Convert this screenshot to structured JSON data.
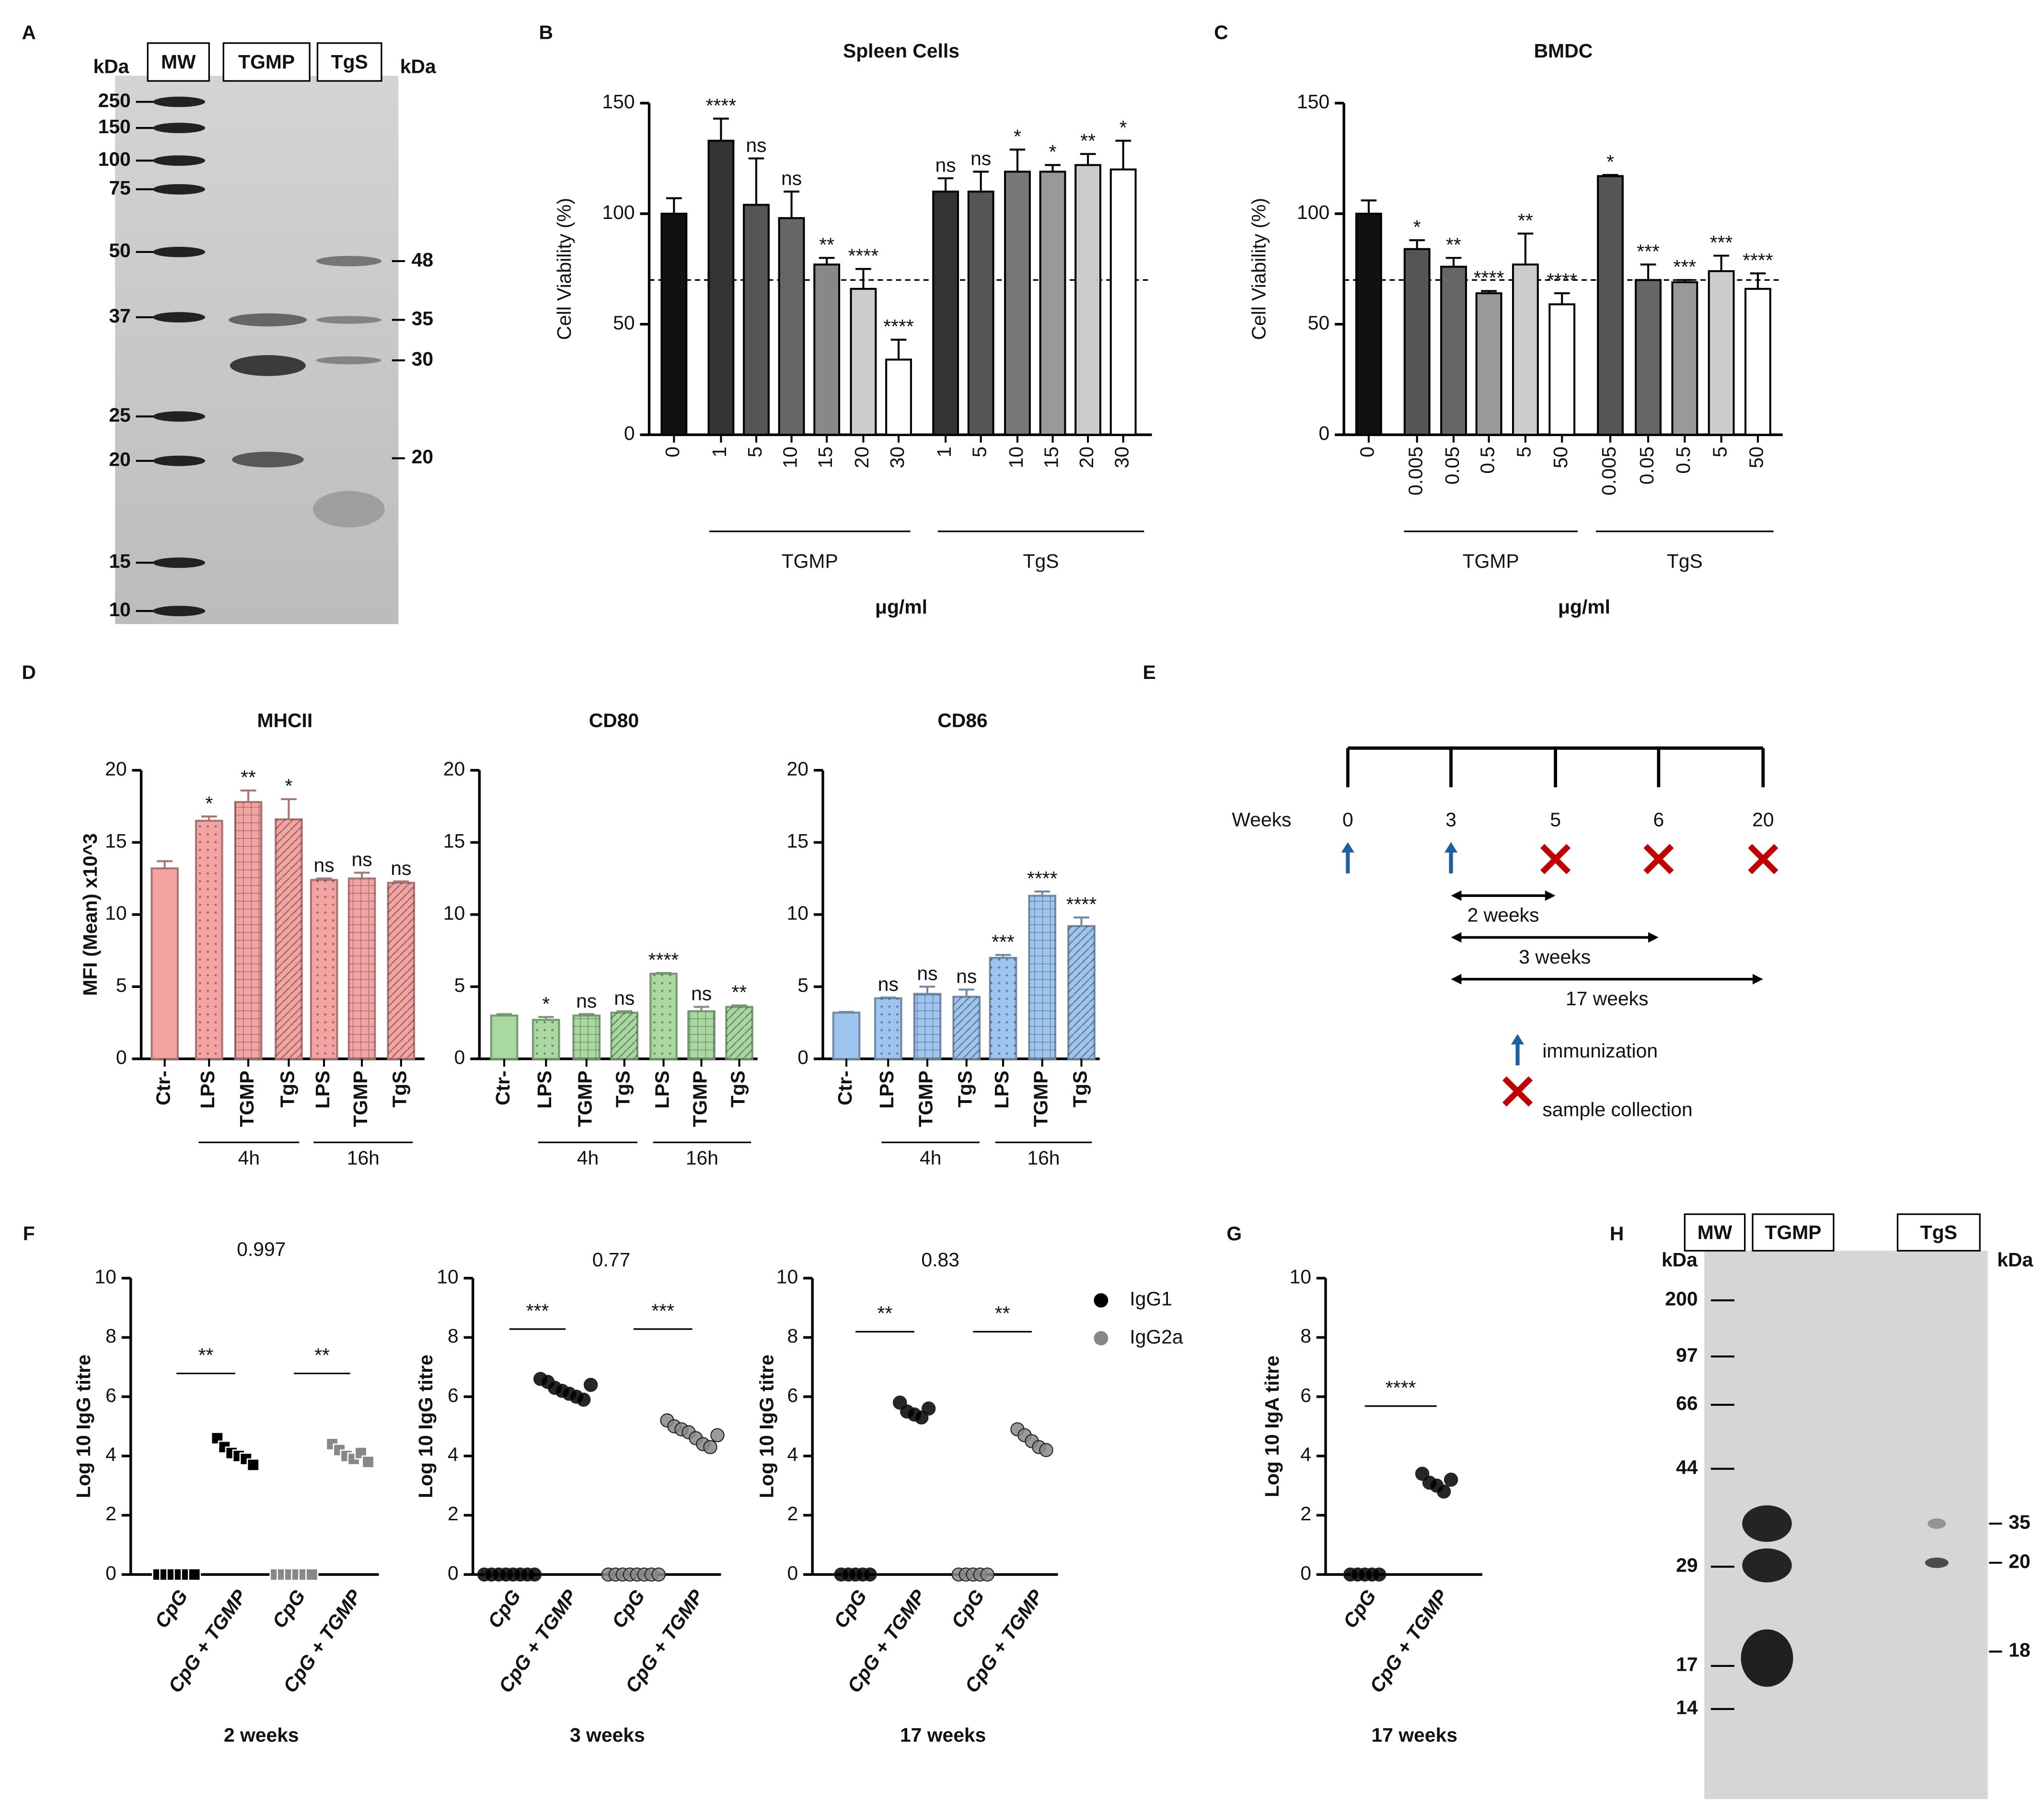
{
  "panel_letters": [
    "A",
    "B",
    "C",
    "D",
    "E",
    "F",
    "G",
    "H"
  ],
  "gels": [
    {
      "lanes": [
        "MW",
        "TGMP",
        "TgS"
      ],
      "unit_left": "kDa",
      "unit_right": "kDa",
      "markers": [
        250,
        150,
        100,
        75,
        50,
        37,
        25,
        20,
        15,
        10
      ],
      "right_labels": [
        48,
        35,
        30,
        20
      ]
    },
    {
      "lanes": [
        "MW",
        "TGMP",
        "TgS"
      ],
      "unit_left": "kDa",
      "unit_right": "kDa",
      "markers": [
        200,
        97,
        66,
        44,
        29,
        17,
        14
      ],
      "right_labels": [
        35,
        20,
        18
      ]
    }
  ],
  "timeline": {
    "label": "Weeks",
    "ticks": [
      0,
      3,
      5,
      6,
      20
    ],
    "immunization": [
      0,
      3
    ],
    "collection": [
      5,
      6,
      20
    ],
    "intervals": [
      {
        "from": 3,
        "to": 5,
        "label": "2 weeks"
      },
      {
        "from": 3,
        "to": 6,
        "label": "3 weeks"
      },
      {
        "from": 3,
        "to": 20,
        "label": "17 weeks"
      }
    ],
    "legend": {
      "immunization": "immunization",
      "collection": "sample collection"
    }
  },
  "chart_data": [
    {
      "type": "bar",
      "title": "Spleen Cells",
      "ylabel": "Cell Viability (%)",
      "xlabel": "μg/ml",
      "categories": [
        "0",
        "1",
        "5",
        "10",
        "15",
        "20",
        "30",
        "1",
        "5",
        "10",
        "15",
        "20",
        "30"
      ],
      "values": [
        100,
        133,
        104,
        98,
        77,
        66,
        34,
        110,
        110,
        119,
        119,
        122,
        120
      ],
      "errors": [
        7,
        10,
        21,
        12,
        3,
        9,
        9,
        6,
        9,
        10,
        3,
        5,
        13
      ],
      "significance": [
        null,
        "****",
        "ns",
        "ns",
        "**",
        "****",
        "****",
        "ns",
        "ns",
        "*",
        "*",
        "**",
        "*"
      ],
      "colors": [
        "#111111",
        "#333333",
        "#555555",
        "#666666",
        "#888888",
        "#cccccc",
        "#ffffff",
        "#333333",
        "#555555",
        "#777777",
        "#999999",
        "#cccccc",
        "#ffffff"
      ],
      "groups": [
        "TGMP",
        "TgS"
      ],
      "reference_line": 70,
      "ylim": [
        0,
        150
      ],
      "yticks": [
        0,
        50,
        100,
        150
      ]
    },
    {
      "type": "bar",
      "title": "BMDC",
      "ylabel": "Cell Viability (%)",
      "xlabel": "μg/ml",
      "categories": [
        "0",
        "0.005",
        "0.05",
        "0.5",
        "5",
        "50",
        "0.005",
        "0.05",
        "0.5",
        "5",
        "50"
      ],
      "values": [
        100,
        84,
        76,
        64,
        77,
        59,
        117,
        70,
        69,
        74,
        66
      ],
      "errors": [
        6,
        4,
        4,
        1,
        14,
        5,
        0.5,
        7,
        1,
        7,
        7
      ],
      "significance": [
        null,
        "*",
        "**",
        "****",
        "**",
        "****",
        "*",
        "***",
        "***",
        "***",
        "****"
      ],
      "colors": [
        "#111111",
        "#555555",
        "#666666",
        "#999999",
        "#cccccc",
        "#ffffff",
        "#555555",
        "#666666",
        "#999999",
        "#cccccc",
        "#ffffff"
      ],
      "groups": [
        "TGMP",
        "TgS"
      ],
      "reference_line": 70,
      "ylim": [
        0,
        150
      ],
      "yticks": [
        0,
        50,
        100,
        150
      ]
    },
    {
      "type": "bar",
      "title": "MHCII",
      "ylabel": "MFI (Mean) x10^3",
      "categories": [
        "Ctr-",
        "LPS",
        "TGMP",
        "TgS",
        "LPS",
        "TGMP",
        "TgS"
      ],
      "values": [
        13.2,
        16.5,
        17.8,
        16.6,
        12.4,
        12.5,
        12.2
      ],
      "errors": [
        0.5,
        0.3,
        0.8,
        1.4,
        0.1,
        0.4,
        0.1
      ],
      "significance": [
        null,
        "*",
        "**",
        "*",
        "ns",
        "ns",
        "ns"
      ],
      "color": "#f4a3a3",
      "groups": [
        "4h",
        "16h"
      ],
      "ylim": [
        0,
        20
      ],
      "yticks": [
        0,
        5,
        10,
        15,
        20
      ]
    },
    {
      "type": "bar",
      "title": "CD80",
      "categories": [
        "Ctr-",
        "LPS",
        "TGMP",
        "TgS",
        "LPS",
        "TGMP",
        "TgS"
      ],
      "values": [
        3.0,
        2.7,
        3.0,
        3.2,
        5.9,
        3.3,
        3.6
      ],
      "errors": [
        0.1,
        0.2,
        0.1,
        0.1,
        0.05,
        0.3,
        0.1
      ],
      "significance": [
        null,
        "*",
        "ns",
        "ns",
        "****",
        "ns",
        "**"
      ],
      "color": "#a9d9a1",
      "groups": [
        "4h",
        "16h"
      ],
      "ylim": [
        0,
        20
      ],
      "yticks": [
        0,
        5,
        10,
        15,
        20
      ]
    },
    {
      "type": "bar",
      "title": "CD86",
      "categories": [
        "Ctr-",
        "LPS",
        "TGMP",
        "TgS",
        "LPS",
        "TGMP",
        "TgS"
      ],
      "values": [
        3.2,
        4.2,
        4.5,
        4.3,
        7.0,
        11.3,
        9.2
      ],
      "errors": [
        0.05,
        0.05,
        0.5,
        0.5,
        0.2,
        0.3,
        0.6
      ],
      "significance": [
        null,
        "ns",
        "ns",
        "ns",
        "***",
        "****",
        "****"
      ],
      "color": "#9dc5ef",
      "groups": [
        "4h",
        "16h"
      ],
      "ylim": [
        0,
        20
      ],
      "yticks": [
        0,
        5,
        10,
        15,
        20
      ]
    },
    {
      "type": "dot",
      "title": "0.997",
      "ylabel": "Log 10 IgG titre",
      "xlabel": "2 weeks",
      "marker": "square",
      "categories": [
        "CpG",
        "CpG + TGMP",
        "CpG",
        "CpG + TGMP"
      ],
      "values": [
        [
          0,
          0,
          0,
          0,
          0,
          0
        ],
        [
          4.6,
          4.3,
          4.1,
          4.0,
          3.9,
          3.7
        ],
        [
          0,
          0,
          0,
          0,
          0,
          0
        ],
        [
          4.4,
          4.2,
          4.0,
          3.9,
          4.1,
          3.8
        ]
      ],
      "colors": [
        "#000000",
        "#000000",
        "#888888",
        "#888888"
      ],
      "significance": [
        null,
        "**",
        null,
        "**"
      ],
      "ylim": [
        0,
        10
      ],
      "yticks": [
        0,
        2,
        4,
        6,
        8,
        10
      ]
    },
    {
      "type": "dot",
      "title": "0.77",
      "ylabel": "Log 10 IgG titre",
      "xlabel": "3 weeks",
      "marker": "circle",
      "categories": [
        "CpG",
        "CpG + TGMP",
        "CpG",
        "CpG + TGMP"
      ],
      "values": [
        [
          0,
          0,
          0,
          0,
          0,
          0,
          0,
          0
        ],
        [
          6.6,
          6.5,
          6.3,
          6.2,
          6.1,
          6.0,
          5.9,
          6.4
        ],
        [
          0,
          0,
          0,
          0,
          0,
          0,
          0,
          0
        ],
        [
          5.2,
          5.0,
          4.9,
          4.8,
          4.6,
          4.4,
          4.3,
          4.7
        ]
      ],
      "colors": [
        "#000000",
        "#000000",
        "#888888",
        "#888888"
      ],
      "significance": [
        null,
        "***",
        null,
        "***"
      ],
      "ylim": [
        0,
        10
      ],
      "yticks": [
        0,
        2,
        4,
        6,
        8,
        10
      ]
    },
    {
      "type": "dot",
      "title": "0.83",
      "ylabel": "Log 10 IgG titre",
      "xlabel": "17 weeks",
      "marker": "circle",
      "categories": [
        "CpG",
        "CpG + TGMP",
        "CpG",
        "CpG + TGMP"
      ],
      "values": [
        [
          0,
          0,
          0,
          0,
          0
        ],
        [
          5.8,
          5.5,
          5.4,
          5.3,
          5.6
        ],
        [
          0,
          0,
          0,
          0,
          0
        ],
        [
          4.9,
          4.7,
          4.5,
          4.3,
          4.2
        ]
      ],
      "colors": [
        "#000000",
        "#000000",
        "#888888",
        "#888888"
      ],
      "significance": [
        null,
        "**",
        null,
        "**"
      ],
      "ylim": [
        0,
        10
      ],
      "yticks": [
        0,
        2,
        4,
        6,
        8,
        10
      ],
      "legend": [
        {
          "name": "IgG1",
          "color": "#000000"
        },
        {
          "name": "IgG2a",
          "color": "#888888"
        }
      ]
    },
    {
      "type": "dot",
      "ylabel": "Log 10 IgA titre",
      "xlabel": "17 weeks",
      "marker": "circle",
      "categories": [
        "CpG",
        "CpG + TGMP"
      ],
      "values": [
        [
          0,
          0,
          0,
          0,
          0
        ],
        [
          3.4,
          3.1,
          3.0,
          2.8,
          3.2
        ]
      ],
      "colors": [
        "#000000",
        "#000000"
      ],
      "significance": [
        null,
        "****"
      ],
      "ylim": [
        0,
        10
      ],
      "yticks": [
        0,
        2,
        4,
        6,
        8,
        10
      ]
    }
  ]
}
